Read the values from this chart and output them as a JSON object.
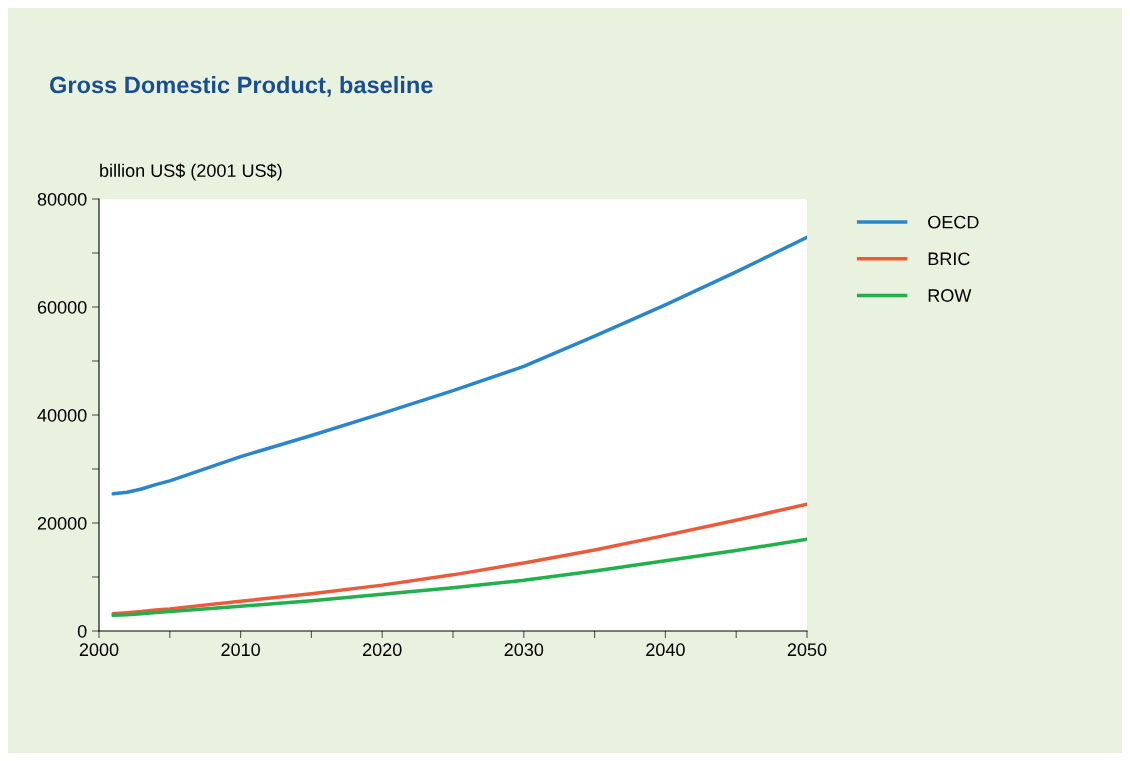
{
  "chart_data": {
    "type": "line",
    "title": "Gross Domestic Product, baseline",
    "ylabel": "billion US$ (2001 US$)",
    "x": [
      2001,
      2002,
      2003,
      2004,
      2005,
      2010,
      2015,
      2020,
      2025,
      2030,
      2035,
      2040,
      2045,
      2050
    ],
    "series": [
      {
        "name": "OECD",
        "color": "#2a86c8",
        "values": [
          25400,
          25700,
          26300,
          27100,
          27800,
          32300,
          36200,
          40300,
          44500,
          49000,
          54600,
          60400,
          66500,
          72900
        ]
      },
      {
        "name": "BRIC",
        "color": "#ec5a3c",
        "values": [
          3200,
          3400,
          3600,
          3900,
          4100,
          5500,
          6900,
          8500,
          10400,
          12600,
          15000,
          17700,
          20500,
          23500
        ]
      },
      {
        "name": "ROW",
        "color": "#21b04b",
        "values": [
          2900,
          3000,
          3200,
          3400,
          3600,
          4600,
          5600,
          6800,
          8000,
          9400,
          11100,
          13000,
          14900,
          17000
        ]
      }
    ],
    "xlim": [
      2000,
      2050
    ],
    "xticks": [
      2000,
      {
        "value": 2005,
        "label": null
      },
      2010,
      {
        "value": 2015,
        "label": null
      },
      2020,
      {
        "value": 2025,
        "label": null
      },
      2030,
      {
        "value": 2035,
        "label": null
      },
      2040,
      {
        "value": 2045,
        "label": null
      },
      2050
    ],
    "ylim": [
      0,
      80000
    ],
    "yticks": [
      0,
      {
        "value": 10000,
        "label": null
      },
      20000,
      {
        "value": 30000,
        "label": null
      },
      40000,
      {
        "value": 50000,
        "label": null
      },
      60000,
      {
        "value": 70000,
        "label": null
      },
      80000
    ],
    "grid": false,
    "legend": "top right",
    "marker": "none",
    "line_style": "solid"
  }
}
